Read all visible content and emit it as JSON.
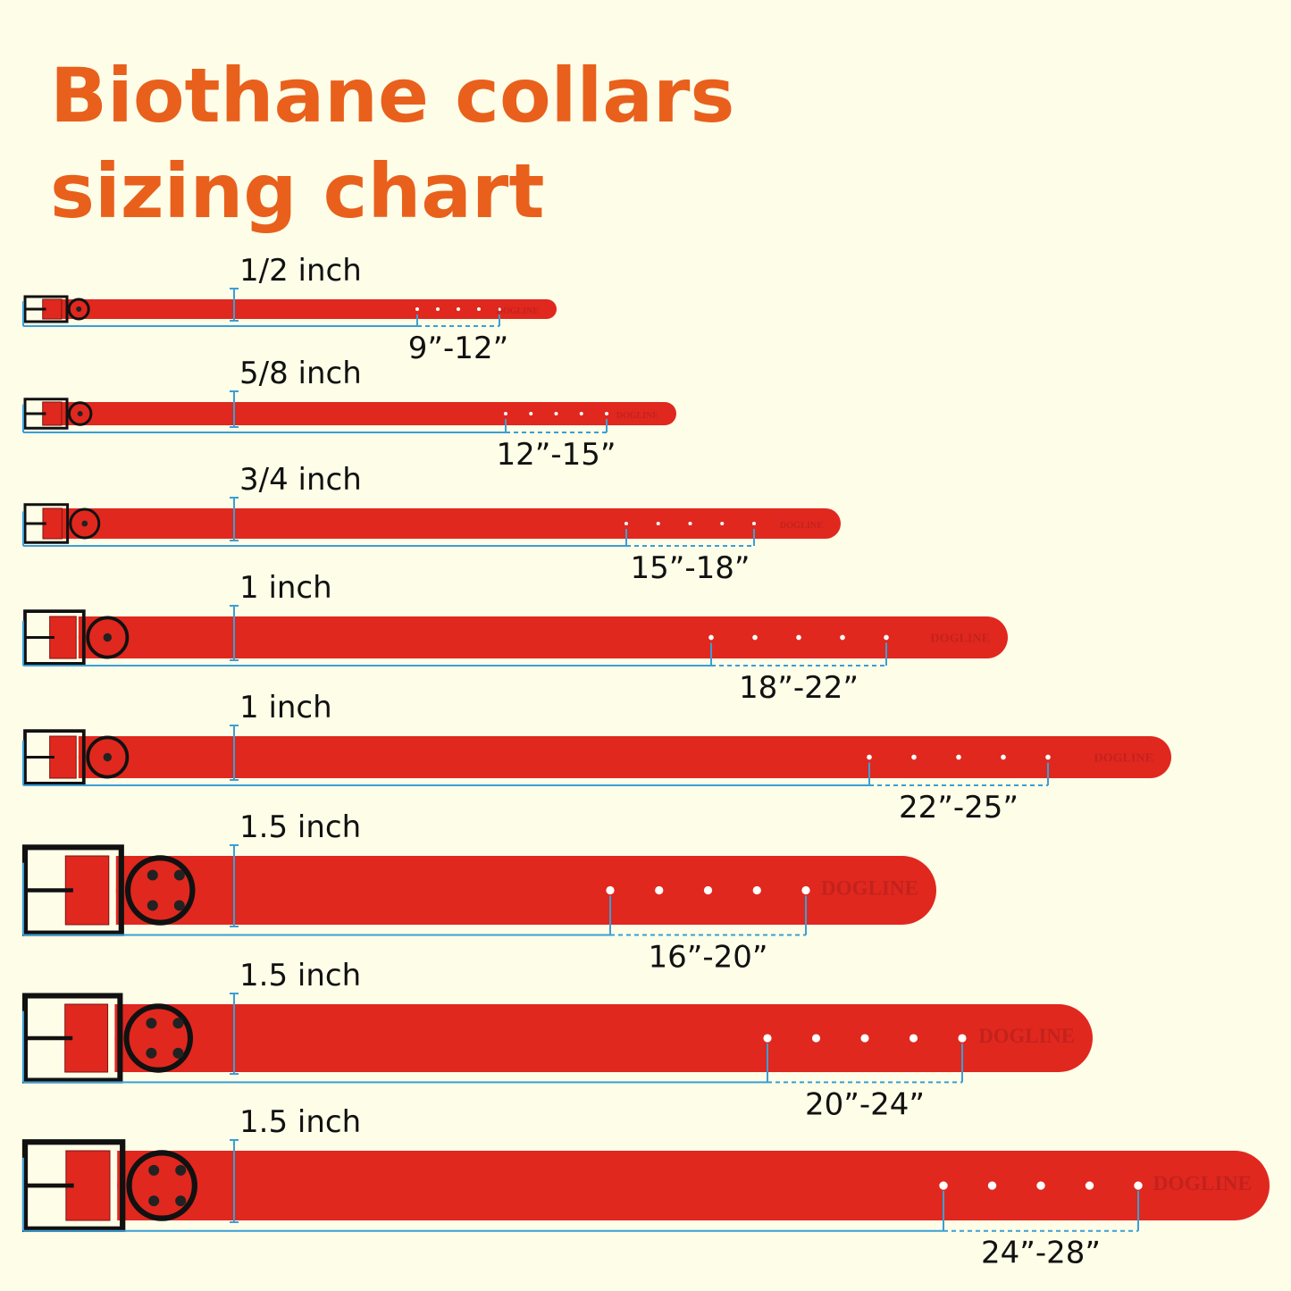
{
  "title": [
    "Biothane collars",
    "sizing chart"
  ],
  "brand": "DOGLINE",
  "collars": [
    {
      "width": "1/2 inch",
      "size": "9”-12”"
    },
    {
      "width": "5/8 inch",
      "size": "12”-15”"
    },
    {
      "width": "3/4 inch",
      "size": "15”-18”"
    },
    {
      "width": "1 inch",
      "size": "18”-22”"
    },
    {
      "width": "1 inch",
      "size": "22”-25”"
    },
    {
      "width": "1.5 inch",
      "size": "16”-20”"
    },
    {
      "width": "1.5 inch",
      "size": "20”-24”"
    },
    {
      "width": "1.5 inch",
      "size": "24”-28”"
    }
  ]
}
